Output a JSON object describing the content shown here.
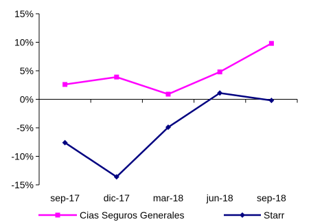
{
  "chart_data": {
    "type": "line",
    "title": "",
    "xlabel": "",
    "ylabel": "",
    "categories": [
      "sep-17",
      "dic-17",
      "mar-18",
      "jun-18",
      "sep-18"
    ],
    "y_ticks": [
      "15%",
      "10%",
      "5%",
      "0%",
      "-5%",
      "-10%",
      "-15%"
    ],
    "ylim": [
      -15,
      15
    ],
    "y_unit": "%",
    "grid": false,
    "legend_position": "bottom",
    "series": [
      {
        "name": "Cias Seguros Generales",
        "values": [
          2.6,
          3.9,
          0.9,
          4.8,
          9.8
        ],
        "color": "#ff00ff",
        "marker": "square"
      },
      {
        "name": "Starr",
        "values": [
          -7.6,
          -13.6,
          -4.9,
          1.1,
          -0.2
        ],
        "color": "#000080",
        "marker": "diamond"
      }
    ]
  }
}
